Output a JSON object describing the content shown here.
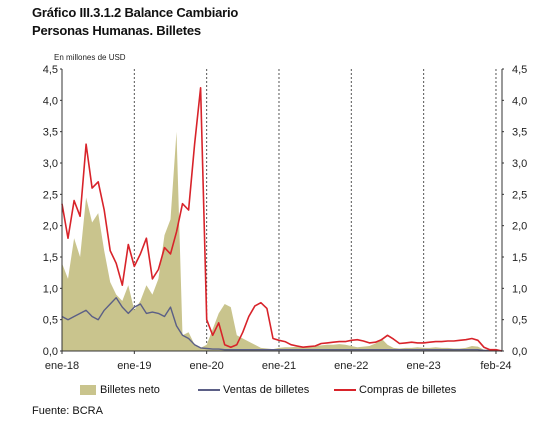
{
  "header": {
    "title": "Gráfico III.3.1.2 Balance Cambiario",
    "subtitle": "Personas Humanas. Billetes"
  },
  "footer": {
    "source": "Fuente: BCRA"
  },
  "colors": {
    "billetes_neto": "#c9c48d",
    "ventas": "#5b5f86",
    "compras": "#d8232a",
    "grid": "#555555"
  },
  "chart_data": {
    "type": "area",
    "unit_label": "En millones de USD",
    "ylim": [
      0,
      4.5
    ],
    "y_ticks": [
      "0,0",
      "0,5",
      "1,0",
      "1,5",
      "2,0",
      "2,5",
      "3,0",
      "3,5",
      "4,0",
      "4,5"
    ],
    "x_tick_labels": [
      "ene-18",
      "ene-19",
      "ene-20",
      "ene-21",
      "ene-22",
      "ene-23",
      "feb-24"
    ],
    "legend_position": "bottom",
    "series": [
      {
        "name": "Billetes neto",
        "style": "area",
        "points": [
          [
            0,
            1.4
          ],
          [
            1,
            1.15
          ],
          [
            2,
            1.8
          ],
          [
            3,
            1.5
          ],
          [
            4,
            2.45
          ],
          [
            5,
            2.05
          ],
          [
            6,
            2.2
          ],
          [
            7,
            1.6
          ],
          [
            8,
            1.1
          ],
          [
            9,
            0.9
          ],
          [
            10,
            0.8
          ],
          [
            11,
            1.05
          ],
          [
            12,
            0.65
          ],
          [
            13,
            0.8
          ],
          [
            14,
            1.05
          ],
          [
            15,
            0.9
          ],
          [
            16,
            1.15
          ],
          [
            17,
            1.85
          ],
          [
            18,
            2.1
          ],
          [
            19,
            3.5
          ],
          [
            20,
            0.25
          ],
          [
            21,
            0.3
          ],
          [
            22,
            0.1
          ],
          [
            23,
            0.05
          ],
          [
            24,
            0.1
          ],
          [
            25,
            0.35
          ],
          [
            26,
            0.6
          ],
          [
            27,
            0.75
          ],
          [
            28,
            0.7
          ],
          [
            29,
            0.25
          ],
          [
            30,
            0.2
          ],
          [
            31,
            0.15
          ],
          [
            32,
            0.1
          ],
          [
            33,
            0.05
          ],
          [
            34,
            0.04
          ],
          [
            35,
            0.03
          ],
          [
            36,
            0.05
          ],
          [
            37,
            0.06
          ],
          [
            38,
            0.06
          ],
          [
            39,
            0.07
          ],
          [
            40,
            0.07
          ],
          [
            41,
            0.08
          ],
          [
            42,
            0.08
          ],
          [
            43,
            0.09
          ],
          [
            44,
            0.1
          ],
          [
            45,
            0.1
          ],
          [
            46,
            0.11
          ],
          [
            47,
            0.1
          ],
          [
            48,
            0.08
          ],
          [
            49,
            0.06
          ],
          [
            50,
            0.07
          ],
          [
            51,
            0.08
          ],
          [
            52,
            0.12
          ],
          [
            53,
            0.2
          ],
          [
            54,
            0.1
          ],
          [
            55,
            0.05
          ],
          [
            56,
            0.04
          ],
          [
            57,
            0.05
          ],
          [
            58,
            0.05
          ],
          [
            59,
            0.06
          ],
          [
            60,
            0.05
          ],
          [
            61,
            0.05
          ],
          [
            62,
            0.06
          ],
          [
            63,
            0.05
          ],
          [
            64,
            0.05
          ],
          [
            65,
            0.04
          ],
          [
            66,
            0.04
          ],
          [
            67,
            0.05
          ],
          [
            68,
            0.08
          ],
          [
            69,
            0.07
          ],
          [
            70,
            0.02
          ],
          [
            71,
            0.01
          ],
          [
            72,
            0.01
          ],
          [
            73,
            0.0
          ]
        ]
      },
      {
        "name": "Ventas de billetes",
        "style": "line",
        "points": [
          [
            0,
            0.55
          ],
          [
            1,
            0.5
          ],
          [
            2,
            0.55
          ],
          [
            3,
            0.6
          ],
          [
            4,
            0.65
          ],
          [
            5,
            0.55
          ],
          [
            6,
            0.5
          ],
          [
            7,
            0.65
          ],
          [
            8,
            0.75
          ],
          [
            9,
            0.85
          ],
          [
            10,
            0.7
          ],
          [
            11,
            0.6
          ],
          [
            12,
            0.7
          ],
          [
            13,
            0.75
          ],
          [
            14,
            0.6
          ],
          [
            15,
            0.62
          ],
          [
            16,
            0.6
          ],
          [
            17,
            0.55
          ],
          [
            18,
            0.7
          ],
          [
            19,
            0.4
          ],
          [
            20,
            0.25
          ],
          [
            21,
            0.2
          ],
          [
            22,
            0.1
          ],
          [
            23,
            0.05
          ],
          [
            24,
            0.04
          ],
          [
            25,
            0.03
          ],
          [
            26,
            0.03
          ],
          [
            27,
            0.02
          ],
          [
            28,
            0.02
          ],
          [
            29,
            0.02
          ],
          [
            30,
            0.02
          ],
          [
            31,
            0.02
          ],
          [
            32,
            0.02
          ],
          [
            33,
            0.02
          ],
          [
            34,
            0.02
          ],
          [
            35,
            0.02
          ],
          [
            36,
            0.02
          ],
          [
            37,
            0.02
          ],
          [
            38,
            0.02
          ],
          [
            39,
            0.02
          ],
          [
            40,
            0.02
          ],
          [
            41,
            0.02
          ],
          [
            42,
            0.02
          ],
          [
            43,
            0.02
          ],
          [
            44,
            0.02
          ],
          [
            45,
            0.02
          ],
          [
            46,
            0.02
          ],
          [
            47,
            0.02
          ],
          [
            48,
            0.02
          ],
          [
            49,
            0.02
          ],
          [
            50,
            0.02
          ],
          [
            51,
            0.02
          ],
          [
            52,
            0.02
          ],
          [
            53,
            0.02
          ],
          [
            54,
            0.02
          ],
          [
            55,
            0.02
          ],
          [
            56,
            0.02
          ],
          [
            57,
            0.02
          ],
          [
            58,
            0.02
          ],
          [
            59,
            0.02
          ],
          [
            60,
            0.02
          ],
          [
            61,
            0.02
          ],
          [
            62,
            0.02
          ],
          [
            63,
            0.02
          ],
          [
            64,
            0.02
          ],
          [
            65,
            0.02
          ],
          [
            66,
            0.02
          ],
          [
            67,
            0.02
          ],
          [
            68,
            0.02
          ],
          [
            69,
            0.02
          ],
          [
            70,
            0.01
          ],
          [
            71,
            0.01
          ],
          [
            72,
            0.01
          ],
          [
            73,
            0.0
          ]
        ]
      },
      {
        "name": "Compras de billetes",
        "style": "line",
        "points": [
          [
            0,
            2.35
          ],
          [
            1,
            1.8
          ],
          [
            2,
            2.4
          ],
          [
            3,
            2.15
          ],
          [
            4,
            3.3
          ],
          [
            5,
            2.6
          ],
          [
            6,
            2.7
          ],
          [
            7,
            2.25
          ],
          [
            8,
            1.6
          ],
          [
            9,
            1.4
          ],
          [
            10,
            1.05
          ],
          [
            11,
            1.7
          ],
          [
            12,
            1.35
          ],
          [
            13,
            1.55
          ],
          [
            14,
            1.8
          ],
          [
            15,
            1.15
          ],
          [
            16,
            1.3
          ],
          [
            17,
            1.65
          ],
          [
            18,
            1.55
          ],
          [
            19,
            1.9
          ],
          [
            20,
            2.35
          ],
          [
            21,
            2.25
          ],
          [
            22,
            3.3
          ],
          [
            23,
            4.2
          ],
          [
            24,
            0.5
          ],
          [
            25,
            0.25
          ],
          [
            26,
            0.45
          ],
          [
            27,
            0.1
          ],
          [
            28,
            0.06
          ],
          [
            29,
            0.1
          ],
          [
            30,
            0.3
          ],
          [
            31,
            0.55
          ],
          [
            32,
            0.72
          ],
          [
            33,
            0.77
          ],
          [
            34,
            0.68
          ],
          [
            35,
            0.2
          ],
          [
            36,
            0.17
          ],
          [
            37,
            0.15
          ],
          [
            38,
            0.1
          ],
          [
            39,
            0.08
          ],
          [
            40,
            0.06
          ],
          [
            41,
            0.07
          ],
          [
            42,
            0.08
          ],
          [
            43,
            0.12
          ],
          [
            44,
            0.13
          ],
          [
            45,
            0.14
          ],
          [
            46,
            0.15
          ],
          [
            47,
            0.15
          ],
          [
            48,
            0.17
          ],
          [
            49,
            0.18
          ],
          [
            50,
            0.16
          ],
          [
            51,
            0.13
          ],
          [
            52,
            0.14
          ],
          [
            53,
            0.18
          ],
          [
            54,
            0.25
          ],
          [
            55,
            0.19
          ],
          [
            56,
            0.12
          ],
          [
            57,
            0.13
          ],
          [
            58,
            0.14
          ],
          [
            59,
            0.13
          ],
          [
            60,
            0.13
          ],
          [
            61,
            0.14
          ],
          [
            62,
            0.15
          ],
          [
            63,
            0.15
          ],
          [
            64,
            0.16
          ],
          [
            65,
            0.16
          ],
          [
            66,
            0.17
          ],
          [
            67,
            0.18
          ],
          [
            68,
            0.2
          ],
          [
            69,
            0.17
          ],
          [
            70,
            0.06
          ],
          [
            71,
            0.02
          ],
          [
            72,
            0.02
          ],
          [
            73,
            0.0
          ]
        ]
      }
    ]
  }
}
